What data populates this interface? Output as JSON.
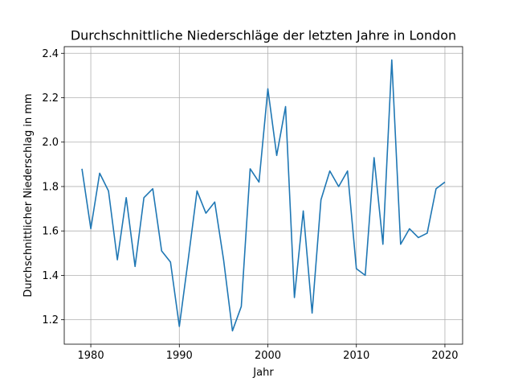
{
  "chart_data": {
    "type": "line",
    "title": "Durchschnittliche Niederschläge der letzten Jahre in London",
    "xlabel": "Jahr",
    "ylabel": "Durchschnittlicher Niederschlag in mm",
    "xlim": [
      1977,
      2022
    ],
    "ylim": [
      1.09,
      2.43
    ],
    "xticks": [
      1980,
      1990,
      2000,
      2010,
      2020
    ],
    "yticks": [
      1.2,
      1.4,
      1.6,
      1.8,
      2.0,
      2.2,
      2.4
    ],
    "xtick_labels": [
      "1980",
      "1990",
      "2000",
      "2010",
      "2020"
    ],
    "ytick_labels": [
      "1.2",
      "1.4",
      "1.6",
      "1.8",
      "2.0",
      "2.2",
      "2.4"
    ],
    "grid": true,
    "line_color": "#1f77b4",
    "series": [
      {
        "x": [
          1979,
          1980,
          1981,
          1982,
          1983,
          1984,
          1985,
          1986,
          1987,
          1988,
          1989,
          1990,
          1991,
          1992,
          1993,
          1994,
          1995,
          1996,
          1997,
          1998,
          1999,
          2000,
          2001,
          2002,
          2003,
          2004,
          2005,
          2006,
          2007,
          2008,
          2009,
          2010,
          2011,
          2012,
          2013,
          2014,
          2015,
          2016,
          2017,
          2018,
          2019,
          2020
        ],
        "values": [
          1.88,
          1.61,
          1.86,
          1.78,
          1.47,
          1.75,
          1.44,
          1.75,
          1.79,
          1.51,
          1.46,
          1.17,
          1.47,
          1.78,
          1.68,
          1.73,
          1.47,
          1.15,
          1.26,
          1.88,
          1.82,
          2.24,
          1.94,
          2.16,
          1.3,
          1.69,
          1.23,
          1.74,
          1.87,
          1.8,
          1.87,
          1.43,
          1.4,
          1.93,
          1.54,
          2.37,
          1.54,
          1.61,
          1.57,
          1.59,
          1.79,
          1.82
        ]
      }
    ]
  }
}
